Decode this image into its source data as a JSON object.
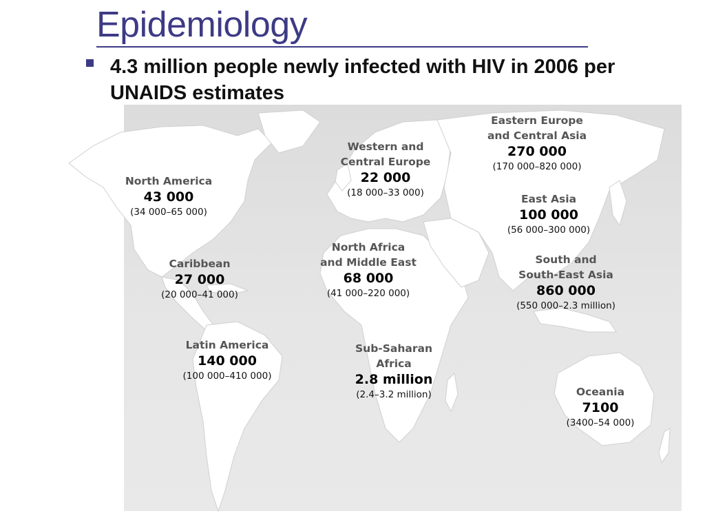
{
  "slide": {
    "title": "Epidemiology",
    "bullet": "4.3 million people newly infected with HIV in 2006 per UNAIDS estimates"
  },
  "colors": {
    "title": "#3d3a85",
    "map_background": "#e3e3e3",
    "land": "#ffffff"
  },
  "map": {
    "regions": [
      {
        "name": "North America",
        "value": "43 000",
        "range": "(34 000–65 000)"
      },
      {
        "name": "Caribbean",
        "value": "27 000",
        "range": "(20 000–41 000)"
      },
      {
        "name": "Latin America",
        "value": "140 000",
        "range": "(100 000–410 000)"
      },
      {
        "name": "Western and Central Europe",
        "name_lines": [
          "Western and",
          "Central Europe"
        ],
        "value": "22 000",
        "range": "(18 000–33 000)"
      },
      {
        "name": "North Africa and Middle East",
        "name_lines": [
          "North Africa",
          "and Middle East"
        ],
        "value": "68 000",
        "range": "(41 000–220 000)"
      },
      {
        "name": "Sub-Saharan Africa",
        "name_lines": [
          "Sub-Saharan",
          "Africa"
        ],
        "value": "2.8 million",
        "range": "(2.4–3.2 million)"
      },
      {
        "name": "Eastern Europe and Central Asia",
        "name_lines": [
          "Eastern Europe",
          "and Central Asia"
        ],
        "value": "270 000",
        "range": "(170 000–820 000)"
      },
      {
        "name": "East Asia",
        "value": "100 000",
        "range": "(56 000–300 000)"
      },
      {
        "name": "South and South-East Asia",
        "name_lines": [
          "South and",
          "South-East Asia"
        ],
        "value": "860 000",
        "range": "(550 000–2.3 million)"
      },
      {
        "name": "Oceania",
        "value": "7100",
        "range": "(3400–54 000)"
      }
    ]
  }
}
